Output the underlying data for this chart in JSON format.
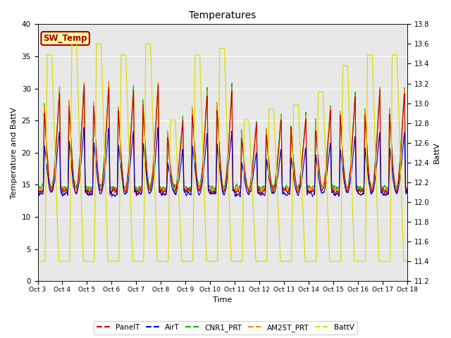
{
  "title": "Temperatures",
  "xlabel": "Time",
  "ylabel_left": "Temperature and BattV",
  "ylabel_right": "BattV",
  "ylim_left": [
    0,
    40
  ],
  "ylim_right": [
    11.2,
    13.8
  ],
  "x_tick_labels": [
    "Oct 3",
    "Oct 4",
    "Oct 5",
    "Oct 6",
    "Oct 7",
    "Oct 8",
    "Oct 9",
    "Oct 10",
    "Oct 11",
    "Oct 12",
    "Oct 13",
    "Oct 14",
    "Oct 15",
    "Oct 16",
    "Oct 17",
    "Oct 18"
  ],
  "series_colors": {
    "PanelT": "#cc0000",
    "AirT": "#0000cc",
    "CNR1_PRT": "#00bb00",
    "AM25T_PRT": "#ff8800",
    "BattV": "#dddd00"
  },
  "inset_label": "SW_Temp",
  "inset_label_color": "#aa0000",
  "inset_box_facecolor": "#ffffaa",
  "inset_box_edgecolor": "#aa0000",
  "background_color": "#e8e8e8",
  "figure_background": "#ffffff",
  "yticks_left": [
    0,
    5,
    10,
    15,
    20,
    25,
    30,
    35,
    40
  ],
  "yticks_right": [
    11.2,
    11.4,
    11.6,
    11.8,
    12.0,
    12.2,
    12.4,
    12.6,
    12.8,
    13.0,
    13.2,
    13.4,
    13.6,
    13.8
  ]
}
